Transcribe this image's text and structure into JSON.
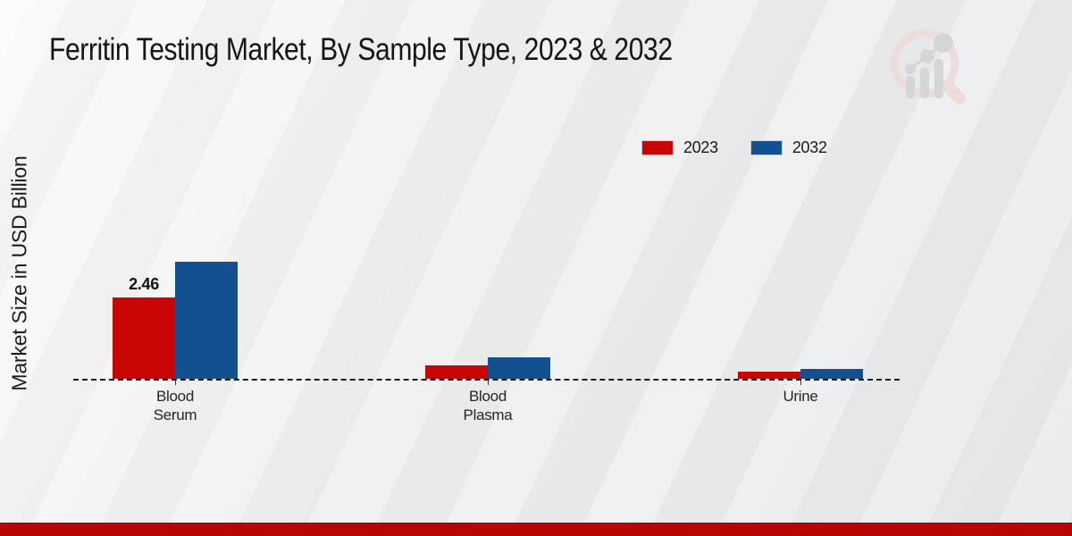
{
  "title": "Ferritin Testing Market, By Sample Type, 2023 & 2032",
  "y_axis_label": "Market Size in USD Billion",
  "legend": {
    "items": [
      {
        "label": "2023",
        "color": "#c90505"
      },
      {
        "label": "2032",
        "color": "#13508f"
      }
    ],
    "position": "upper right"
  },
  "chart_data": {
    "type": "bar",
    "title": "Ferritin Testing Market, By Sample Type, 2023 & 2032",
    "categories": [
      [
        "Blood",
        "Serum"
      ],
      [
        "Blood",
        "Plasma"
      ],
      [
        "Urine"
      ]
    ],
    "series": [
      {
        "name": "2023",
        "color": "#c90505",
        "values": [
          2.46,
          0.41,
          0.22
        ],
        "labels": [
          "2.46",
          "",
          ""
        ]
      },
      {
        "name": "2032",
        "color": "#13508f",
        "values": [
          3.55,
          0.65,
          0.31
        ],
        "labels": [
          "",
          "",
          ""
        ]
      }
    ],
    "xlabel": "",
    "ylabel": "Market Size in USD Billion",
    "ylim": [
      0,
      3.6
    ],
    "grid": false,
    "baseline_style": "dashed",
    "legend_position": "upper right"
  },
  "branding": {
    "logo_name": "market-research-magnifier-logo",
    "ring_color": "#eedcdc",
    "bar_color": "#d3d5d7"
  },
  "footer": {
    "band_color": "#b80505"
  }
}
